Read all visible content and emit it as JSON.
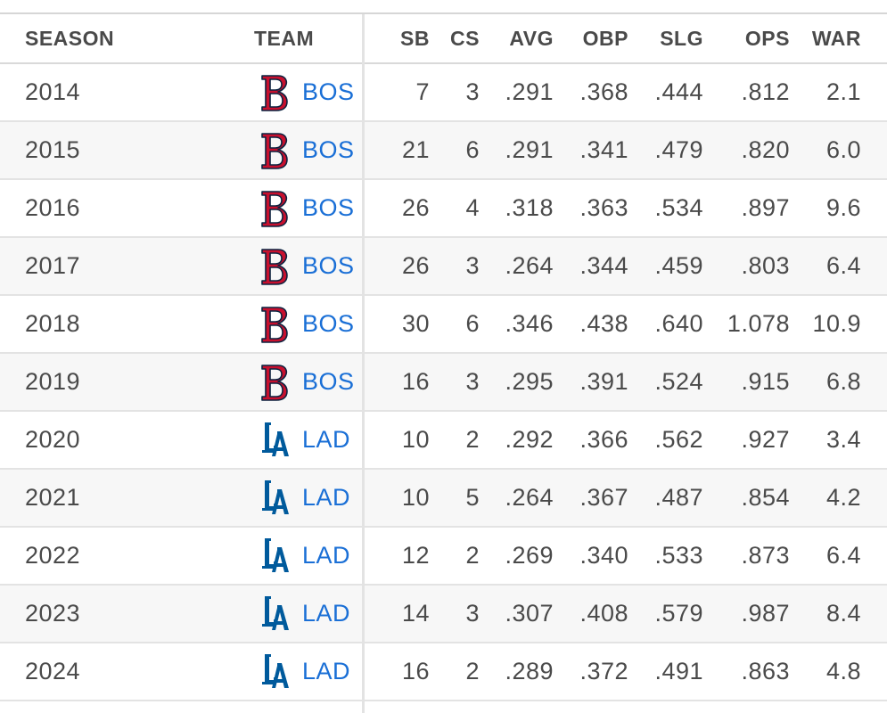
{
  "header": {
    "season": "SEASON",
    "team": "TEAM",
    "sb": "SB",
    "cs": "CS",
    "avg": "AVG",
    "obp": "OBP",
    "slg": "SLG",
    "ops": "OPS",
    "war": "WAR"
  },
  "colors": {
    "link_blue": "#1a6fd6",
    "red_sox_red": "#c8102e",
    "dodgers_blue": "#005a9c",
    "row_alt": "#f7f7f7"
  },
  "rows": [
    {
      "season": "2014",
      "team": "BOS",
      "logo": "red-sox-logo-icon",
      "sb": "7",
      "cs": "3",
      "avg": ".291",
      "obp": ".368",
      "slg": ".444",
      "ops": ".812",
      "war": "2.1"
    },
    {
      "season": "2015",
      "team": "BOS",
      "logo": "red-sox-logo-icon",
      "sb": "21",
      "cs": "6",
      "avg": ".291",
      "obp": ".341",
      "slg": ".479",
      "ops": ".820",
      "war": "6.0"
    },
    {
      "season": "2016",
      "team": "BOS",
      "logo": "red-sox-logo-icon",
      "sb": "26",
      "cs": "4",
      "avg": ".318",
      "obp": ".363",
      "slg": ".534",
      "ops": ".897",
      "war": "9.6"
    },
    {
      "season": "2017",
      "team": "BOS",
      "logo": "red-sox-logo-icon",
      "sb": "26",
      "cs": "3",
      "avg": ".264",
      "obp": ".344",
      "slg": ".459",
      "ops": ".803",
      "war": "6.4"
    },
    {
      "season": "2018",
      "team": "BOS",
      "logo": "red-sox-logo-icon",
      "sb": "30",
      "cs": "6",
      "avg": ".346",
      "obp": ".438",
      "slg": ".640",
      "ops": "1.078",
      "war": "10.9"
    },
    {
      "season": "2019",
      "team": "BOS",
      "logo": "red-sox-logo-icon",
      "sb": "16",
      "cs": "3",
      "avg": ".295",
      "obp": ".391",
      "slg": ".524",
      "ops": ".915",
      "war": "6.8"
    },
    {
      "season": "2020",
      "team": "LAD",
      "logo": "dodgers-logo-icon",
      "sb": "10",
      "cs": "2",
      "avg": ".292",
      "obp": ".366",
      "slg": ".562",
      "ops": ".927",
      "war": "3.4"
    },
    {
      "season": "2021",
      "team": "LAD",
      "logo": "dodgers-logo-icon",
      "sb": "10",
      "cs": "5",
      "avg": ".264",
      "obp": ".367",
      "slg": ".487",
      "ops": ".854",
      "war": "4.2"
    },
    {
      "season": "2022",
      "team": "LAD",
      "logo": "dodgers-logo-icon",
      "sb": "12",
      "cs": "2",
      "avg": ".269",
      "obp": ".340",
      "slg": ".533",
      "ops": ".873",
      "war": "6.4"
    },
    {
      "season": "2023",
      "team": "LAD",
      "logo": "dodgers-logo-icon",
      "sb": "14",
      "cs": "3",
      "avg": ".307",
      "obp": ".408",
      "slg": ".579",
      "ops": ".987",
      "war": "8.4"
    },
    {
      "season": "2024",
      "team": "LAD",
      "logo": "dodgers-logo-icon",
      "sb": "16",
      "cs": "2",
      "avg": ".289",
      "obp": ".372",
      "slg": ".491",
      "ops": ".863",
      "war": "4.8"
    }
  ]
}
